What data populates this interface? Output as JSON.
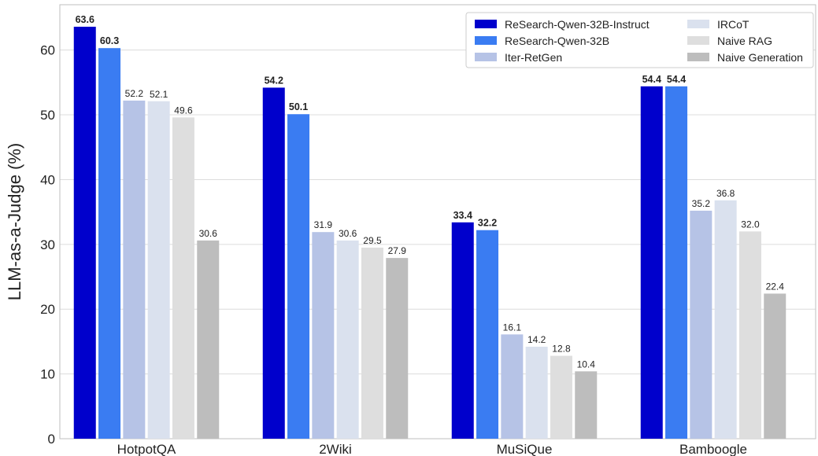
{
  "chart_data": {
    "type": "bar",
    "title": "",
    "xlabel": "",
    "ylabel": "LLM-as-a-Judge (%)",
    "ylim": [
      0,
      67
    ],
    "yticks": [
      0,
      10,
      20,
      30,
      40,
      50,
      60
    ],
    "grid": "horizontal",
    "legend_position": "top-right",
    "categories": [
      "HotpotQA",
      "2Wiki",
      "MuSiQue",
      "Bamboogle"
    ],
    "series": [
      {
        "name": "ReSearch-Qwen-32B-Instruct",
        "color": "#0000cc",
        "values": [
          63.6,
          54.2,
          33.4,
          54.4
        ],
        "value_labels": [
          "63.6",
          "54.2",
          "33.4",
          "54.4"
        ],
        "bold_labels": true
      },
      {
        "name": "ReSearch-Qwen-32B",
        "color": "#3a7cf2",
        "values": [
          60.3,
          50.1,
          32.2,
          54.4
        ],
        "value_labels": [
          "60.3",
          "50.1",
          "32.2",
          "54.4"
        ],
        "bold_labels": true
      },
      {
        "name": "Iter-RetGen",
        "color": "#b6c3e6",
        "values": [
          52.2,
          31.9,
          16.1,
          35.2
        ],
        "value_labels": [
          "52.2",
          "31.9",
          "16.1",
          "35.2"
        ],
        "bold_labels": false
      },
      {
        "name": "IRCoT",
        "color": "#dae1ee",
        "values": [
          52.1,
          30.6,
          14.2,
          36.8
        ],
        "value_labels": [
          "52.1",
          "30.6",
          "14.2",
          "36.8"
        ],
        "bold_labels": false
      },
      {
        "name": "Naive RAG",
        "color": "#dedede",
        "values": [
          49.6,
          29.5,
          12.8,
          32.0
        ],
        "value_labels": [
          "49.6",
          "29.5",
          "12.8",
          "32.0"
        ],
        "bold_labels": false
      },
      {
        "name": "Naive Generation",
        "color": "#bdbdbd",
        "values": [
          30.6,
          27.9,
          10.4,
          22.4
        ],
        "value_labels": [
          "30.6",
          "27.9",
          "10.4",
          "22.4"
        ],
        "bold_labels": false
      }
    ]
  }
}
